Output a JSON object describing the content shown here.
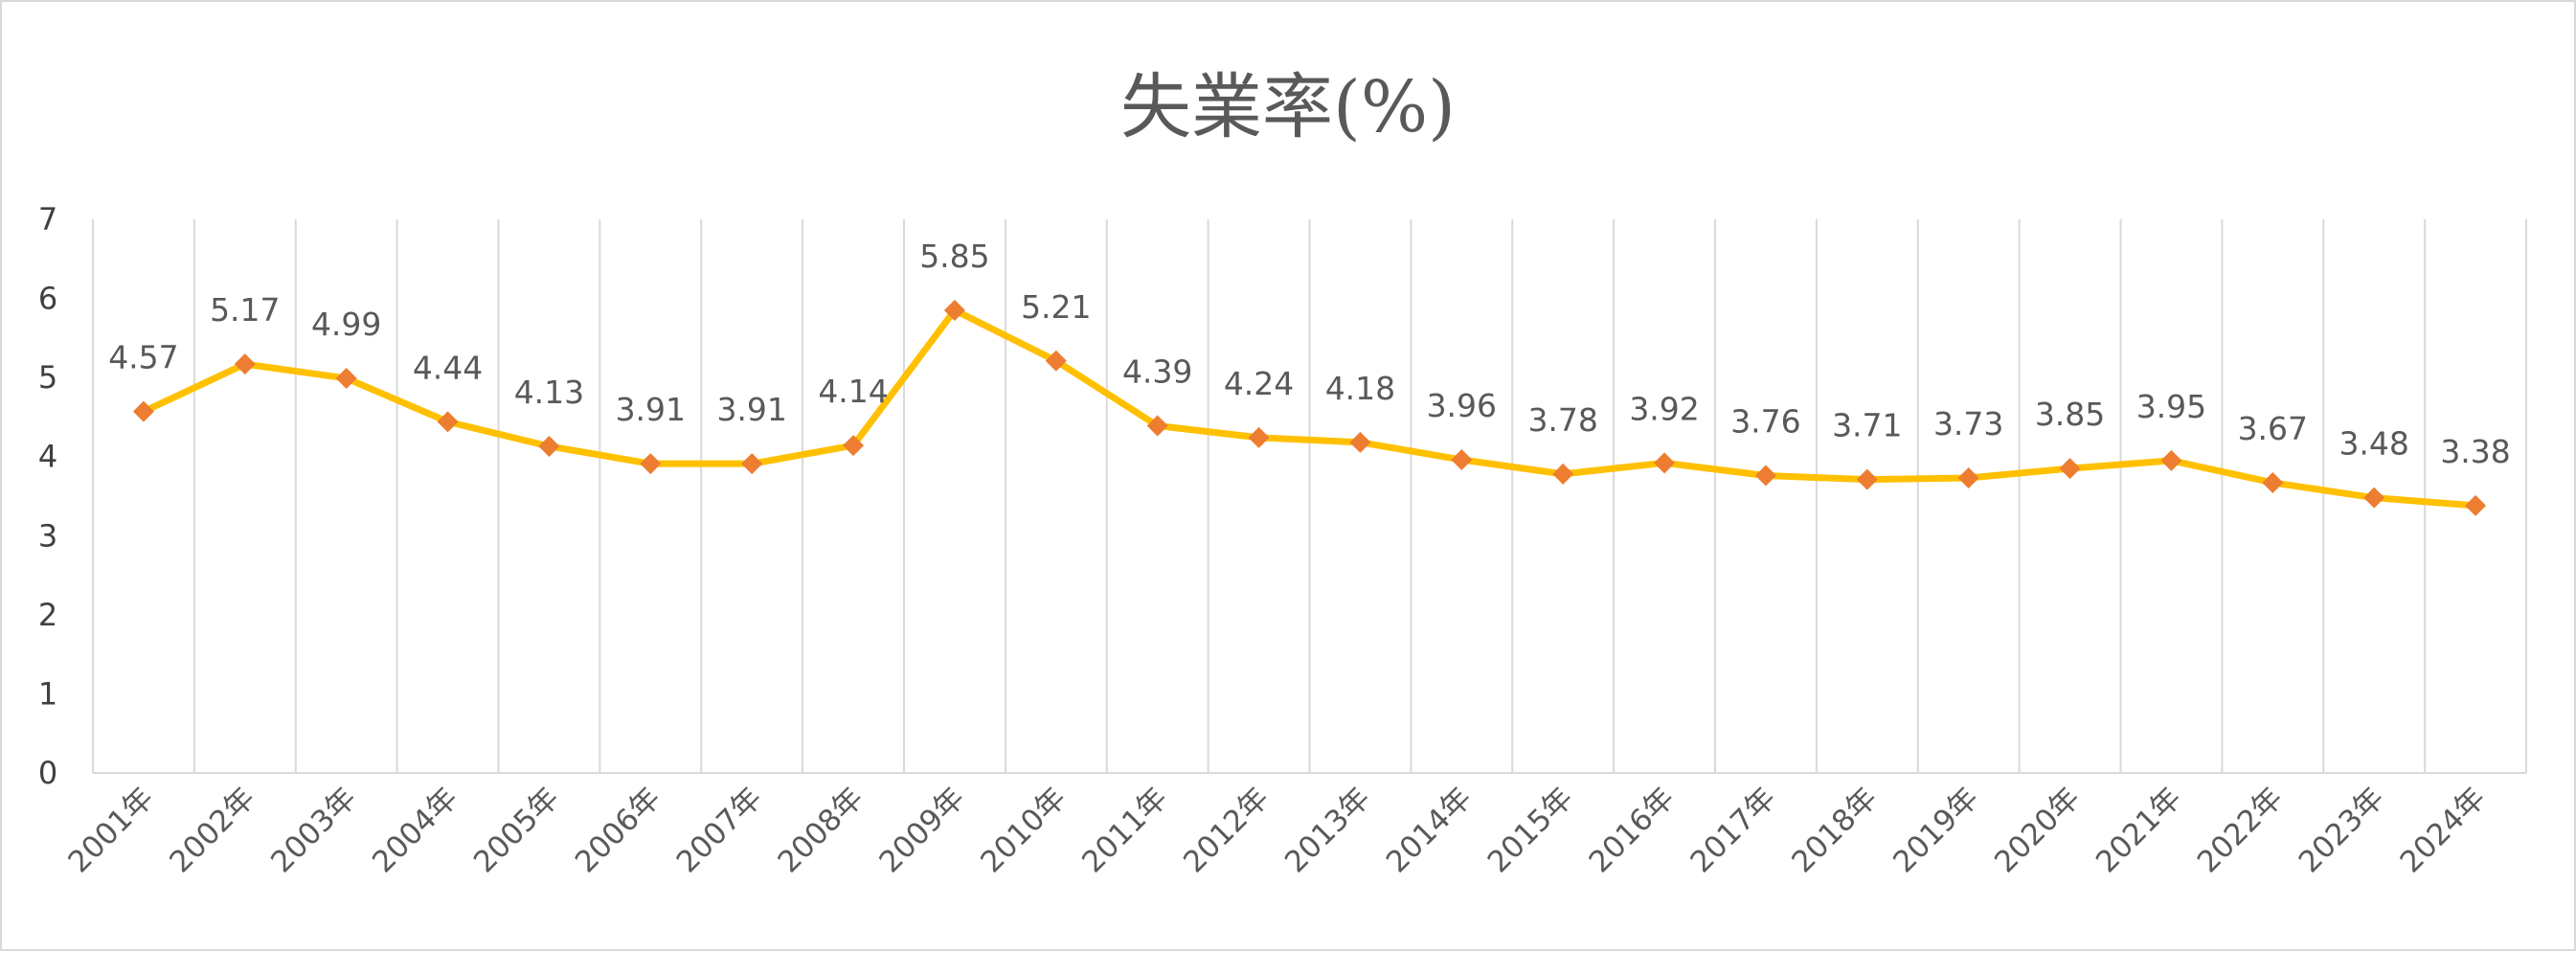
{
  "chart_data": {
    "type": "line",
    "title": "失業率(%)",
    "categories": [
      "2001年",
      "2002年",
      "2003年",
      "2004年",
      "2005年",
      "2006年",
      "2007年",
      "2008年",
      "2009年",
      "2010年",
      "2011年",
      "2012年",
      "2013年",
      "2014年",
      "2015年",
      "2016年",
      "2017年",
      "2018年",
      "2019年",
      "2020年",
      "2021年",
      "2022年",
      "2023年",
      "2024年"
    ],
    "series": [
      {
        "values": [
          4.57,
          5.17,
          4.99,
          4.44,
          4.13,
          3.91,
          3.91,
          4.14,
          5.85,
          5.21,
          4.39,
          4.24,
          4.18,
          3.96,
          3.78,
          3.92,
          3.76,
          3.71,
          3.73,
          3.85,
          3.95,
          3.67,
          3.48,
          3.38
        ],
        "data_labels": [
          "4.57",
          "5.17",
          "4.99",
          "4.44",
          "4.13",
          "3.91",
          "3.91",
          "4.14",
          "5.85",
          "5.21",
          "4.39",
          "4.24",
          "4.18",
          "3.96",
          "3.78",
          "3.92",
          "3.76",
          "3.71",
          "3.73",
          "3.85",
          "3.95",
          "3.67",
          "3.48",
          "3.38"
        ]
      }
    ],
    "yticks": [
      "0",
      "1",
      "2",
      "3",
      "4",
      "5",
      "6",
      "7"
    ],
    "ylim": [
      0,
      7
    ],
    "grid": "vertical",
    "legend": "none",
    "line_color": "#FFC000",
    "marker_color": "#ED7D31",
    "marker": "diamond"
  }
}
